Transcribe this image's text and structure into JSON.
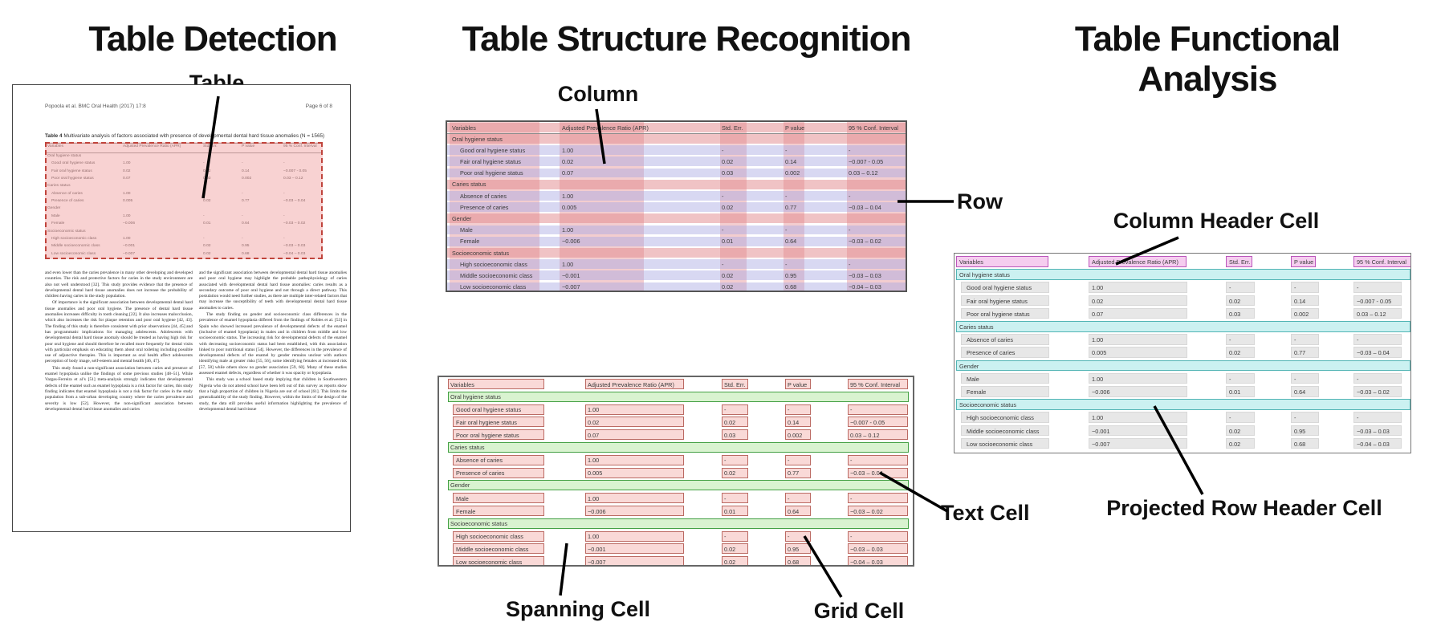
{
  "panels": {
    "detection": {
      "title": "Table Detection",
      "label_table": "Table"
    },
    "structure": {
      "title": "Table Structure Recognition",
      "label_column": "Column",
      "label_row": "Row",
      "label_spanning": "Spanning Cell",
      "label_text": "Text Cell",
      "label_grid": "Grid Cell"
    },
    "functional": {
      "title": "Table Functional Analysis",
      "label_col_header": "Column Header Cell",
      "label_proj_row": "Projected Row Header Cell"
    }
  },
  "document": {
    "header_left": "Popoola et al. BMC Oral Health  (2017) 17:8",
    "header_right": "Page 6 of 8",
    "caption_bold": "Table 4",
    "caption_rest": " Multivariate analysis of factors associated with presence of developmental dental hard tissue anomalies (N = 1565)",
    "body_col1": [
      "and even lower than the caries prevalence in many other developing and developed countries. The risk and protective factors for caries in the study environment are also not well understood [32]. This study provides evidence that the presence of developmental dental hard tissue anomalies does not increase the probability of children having caries in the study population.",
      "Of importance is the significant association between developmental dental hard tissue anomalies and poor oral hygiene. The presence of dental hard tissue anomalies increases difficulty in tooth cleaning [22]. It also increases malocclusion, which also increases the risk for plaque retention and poor oral hygiene [42, 43]. The finding of this study is therefore consistent with prior observations [44, 45] and has programmatic implications for managing adolescents. Adolescents with developmental dental hard tissue anomaly should be treated as having high risk for poor oral hygiene and should therefore be recalled more frequently for dental visits with particular emphasis on educating them about oral toileting including possible use of adjunctive therapies. This is important as oral health affect adolescents perception of body image, self-esteem and mental health [46, 47].",
      "This study found a non-significant association between caries and presence of enamel hypoplasia unlike the findings of some previous studies [48–51]. While Vargas-Ferreira et al’s [51] meta-analysis strongly indicates that developmental defects of the enamel such as enamel hypoplasia is a risk factor for caries, this study finding indicates that enamel hypoplasia is not a risk factor for caries in the study population from a sub-urban developing country where the caries prevalence and severity is low [52]. However, the non-significant association between developmental dental hard tissue anomalies and caries"
    ],
    "body_col2": [
      "and the significant association between developmental dental hard tissue anomalies and poor oral hygiene may highlight the probable pathophysiology of caries associated with developmental dental hard tissue anomalies: caries results as a secondary outcome of poor oral hygiene and not through a direct pathway. This postulation would need further studies, as there are multiple inter-related factors that may increase the susceptibility of teeth with developmental dental hard tissue anomalies to caries.",
      "The study finding on gender and socioeconomic class differences in the prevalence of enamel hypoplasia differed from the findings of Robles et al. [53] in Spain who showed increased prevalence of developmental defects of the enamel (inclusive of enamel hypoplasia) in males and in children from middle and low socioeconomic status. The increasing risk for developmental defects of the enamel with decreasing socioeconomic status had been established, with this association linked to poor nutritional status [54]. However, the differences in the prevalence of developmental defects of the enamel by gender remains unclear with authors identifying male at greater risks [55, 56], some identifying females at increased risk [57, 58] while others show no gender association [59, 60]. Many of these studies assessed enamel defects, regardless of whether it was opacity or hypoplasia.",
      "This study was a school based study implying that children in Southwestern Nigeria who do not attend school have been left out of this survey as reports show that a high proportion of children in Nigeria are out of school [61]. This limits the generalizability of the study finding. However, within the limits of the design of the study, the data still provides useful information highlighting the prevalence of developmental dental hard tissue"
    ]
  },
  "table": {
    "columns": [
      "Variables",
      "Adjusted Prevalence Ratio (APR)",
      "Std. Err.",
      "P value",
      "95 % Conf. Interval"
    ],
    "rows": [
      {
        "type": "section",
        "label": "Oral hygiene status"
      },
      {
        "type": "data",
        "label": "Good oral hygiene status",
        "apr": "1.00",
        "se": "-",
        "p": "-",
        "ci": "-"
      },
      {
        "type": "data",
        "label": "Fair oral hygiene status",
        "apr": "0.02",
        "se": "0.02",
        "p": "0.14",
        "ci": "−0.007 - 0.05"
      },
      {
        "type": "data",
        "label": "Poor oral hygiene status",
        "apr": "0.07",
        "se": "0.03",
        "p": "0.002",
        "ci": "0.03 – 0.12"
      },
      {
        "type": "section",
        "label": "Caries status"
      },
      {
        "type": "data",
        "label": "Absence of caries",
        "apr": "1.00",
        "se": "-",
        "p": "-",
        "ci": "-"
      },
      {
        "type": "data",
        "label": "Presence of caries",
        "apr": "0.005",
        "se": "0.02",
        "p": "0.77",
        "ci": "−0.03 – 0.04"
      },
      {
        "type": "section",
        "label": "Gender"
      },
      {
        "type": "data",
        "label": "Male",
        "apr": "1.00",
        "se": "-",
        "p": "-",
        "ci": "-"
      },
      {
        "type": "data",
        "label": "Female",
        "apr": "−0.006",
        "se": "0.01",
        "p": "0.64",
        "ci": "−0.03 – 0.02"
      },
      {
        "type": "section",
        "label": "Socioeconomic status"
      },
      {
        "type": "data",
        "label": "High socioeconomic class",
        "apr": "1.00",
        "se": "-",
        "p": "-",
        "ci": "-"
      },
      {
        "type": "data",
        "label": "Middle socioeconomic class",
        "apr": "−0.001",
        "se": "0.02",
        "p": "0.95",
        "ci": "−0.03 – 0.03"
      },
      {
        "type": "data",
        "label": "Low socioeconomic class",
        "apr": "−0.007",
        "se": "0.02",
        "p": "0.68",
        "ci": "−0.04 – 0.03"
      }
    ]
  },
  "colors": {
    "detection_fill": "rgba(242,166,166,0.50)",
    "detection_border": "#c0443c",
    "row_band_blue": "rgba(168,168,226,0.45)",
    "row_band_pink": "rgba(226,136,140,0.50)",
    "col_band_pink": "rgba(226,136,140,0.42)",
    "cell_fill": "rgba(248,210,208,0.85)",
    "cell_border": "#bb6a63",
    "spanning_fill": "#d9f3d0",
    "spanning_border": "#44a044",
    "header_cell_fill": "#f5cdef",
    "header_cell_border": "#bb55bb",
    "proj_row_fill": "#cbf1f1",
    "proj_row_border": "#52b5b5",
    "gray_cell_fill": "#e7e7e7",
    "gray_cell_border": "#d8d8d8"
  }
}
